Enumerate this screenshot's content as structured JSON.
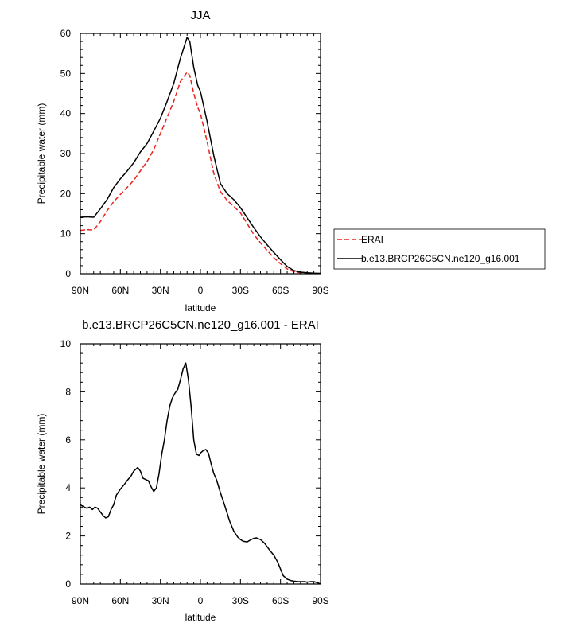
{
  "chart_data": [
    {
      "type": "line",
      "title": "JJA",
      "xlabel": "latitude",
      "ylabel": "Precipitable water (mm)",
      "xlim": [
        90,
        -90
      ],
      "ylim": [
        0,
        60
      ],
      "x_ticks": [
        90,
        60,
        30,
        0,
        -30,
        -60,
        -90
      ],
      "x_tick_labels": [
        "90N",
        "60N",
        "30N",
        "0",
        "30S",
        "60S",
        "90S"
      ],
      "y_ticks": [
        0,
        10,
        20,
        30,
        40,
        50,
        60
      ],
      "y_tick_labels": [
        "0",
        "10",
        "20",
        "30",
        "40",
        "50",
        "60"
      ],
      "legend": "right, outside plot",
      "grid": false,
      "series": [
        {
          "name": "ERAI",
          "color": "#e8231c",
          "dash": "dashed",
          "x": [
            90,
            85,
            80,
            75,
            70,
            65,
            60,
            55,
            50,
            45,
            40,
            35,
            30,
            25,
            20,
            15,
            10,
            8,
            5,
            2,
            0,
            -5,
            -10,
            -15,
            -20,
            -25,
            -30,
            -35,
            -40,
            -45,
            -50,
            -55,
            -60,
            -65,
            -70,
            -75,
            -80,
            -85,
            -90
          ],
          "values": [
            10.8,
            11.0,
            10.9,
            13.0,
            15.7,
            18.0,
            19.8,
            21.5,
            23.3,
            25.7,
            28.0,
            31.0,
            35.0,
            39.0,
            43.0,
            48.0,
            50.3,
            49.5,
            45.0,
            41.5,
            40.0,
            33.0,
            25.0,
            20.5,
            18.3,
            16.8,
            15.2,
            12.5,
            9.8,
            7.7,
            5.8,
            4.0,
            2.5,
            1.2,
            0.5,
            0.25,
            0.15,
            0.08,
            0.05
          ]
        },
        {
          "name": "b.e13.BRCP26C5CN.ne120_g16.001",
          "color": "#000000",
          "dash": "solid",
          "x": [
            90,
            85,
            80,
            75,
            70,
            65,
            60,
            55,
            50,
            45,
            40,
            35,
            30,
            25,
            20,
            15,
            10,
            8,
            5,
            2,
            0,
            -5,
            -10,
            -15,
            -20,
            -25,
            -30,
            -35,
            -40,
            -45,
            -50,
            -55,
            -60,
            -65,
            -70,
            -75,
            -80,
            -85,
            -90
          ],
          "values": [
            14.1,
            14.2,
            14.1,
            16.2,
            18.5,
            21.5,
            23.7,
            25.6,
            27.7,
            30.4,
            32.5,
            35.6,
            38.8,
            43.0,
            47.5,
            53.8,
            59.0,
            58.0,
            51.5,
            47.0,
            45.5,
            38.0,
            29.5,
            22.5,
            20.0,
            18.5,
            16.5,
            14.0,
            11.5,
            9.2,
            7.2,
            5.3,
            3.5,
            1.8,
            0.8,
            0.4,
            0.25,
            0.15,
            0.1
          ]
        }
      ]
    },
    {
      "type": "line",
      "title": "b.e13.BRCP26C5CN.ne120_g16.001 - ERAI",
      "xlabel": "latitude",
      "ylabel": "Precipitable water (mm)",
      "xlim": [
        90,
        -90
      ],
      "ylim": [
        0,
        10
      ],
      "x_ticks": [
        90,
        60,
        30,
        0,
        -30,
        -60,
        -90
      ],
      "x_tick_labels": [
        "90N",
        "60N",
        "30N",
        "0",
        "30S",
        "60S",
        "90S"
      ],
      "y_ticks": [
        0,
        2,
        4,
        6,
        8,
        10
      ],
      "y_tick_labels": [
        "0",
        "2",
        "4",
        "6",
        "8",
        "10"
      ],
      "grid": false,
      "series": [
        {
          "color": "#000000",
          "dash": "solid",
          "x": [
            90,
            87,
            85,
            83,
            81,
            79,
            77,
            75,
            73,
            71,
            69,
            67,
            65,
            63,
            60,
            57,
            55,
            52,
            50,
            47,
            45,
            43,
            41,
            39,
            37,
            35,
            33,
            31,
            29,
            27,
            25,
            23,
            21,
            19,
            17,
            15,
            13,
            11,
            9,
            7,
            5,
            3,
            1,
            0,
            -2,
            -4,
            -6,
            -8,
            -10,
            -12,
            -15,
            -18,
            -20,
            -22,
            -25,
            -28,
            -30,
            -32,
            -35,
            -38,
            -40,
            -42,
            -45,
            -48,
            -50,
            -52,
            -55,
            -58,
            -60,
            -62,
            -65,
            -68,
            -70,
            -73,
            -75,
            -78,
            -80,
            -83,
            -85,
            -88,
            -90
          ],
          "values": [
            3.3,
            3.2,
            3.15,
            3.2,
            3.1,
            3.2,
            3.15,
            3.0,
            2.85,
            2.75,
            2.8,
            3.1,
            3.3,
            3.7,
            3.95,
            4.15,
            4.3,
            4.5,
            4.7,
            4.85,
            4.7,
            4.4,
            4.35,
            4.3,
            4.05,
            3.85,
            4.0,
            4.6,
            5.4,
            6.0,
            6.8,
            7.4,
            7.75,
            7.95,
            8.1,
            8.5,
            8.95,
            9.2,
            8.5,
            7.4,
            6.0,
            5.4,
            5.35,
            5.45,
            5.55,
            5.6,
            5.45,
            5.0,
            4.6,
            4.35,
            3.8,
            3.3,
            2.95,
            2.6,
            2.2,
            1.95,
            1.85,
            1.78,
            1.75,
            1.85,
            1.9,
            1.92,
            1.85,
            1.7,
            1.55,
            1.4,
            1.2,
            0.9,
            0.62,
            0.35,
            0.2,
            0.14,
            0.12,
            0.1,
            0.1,
            0.1,
            0.08,
            0.1,
            0.1,
            0.05,
            0.0
          ]
        }
      ]
    }
  ]
}
